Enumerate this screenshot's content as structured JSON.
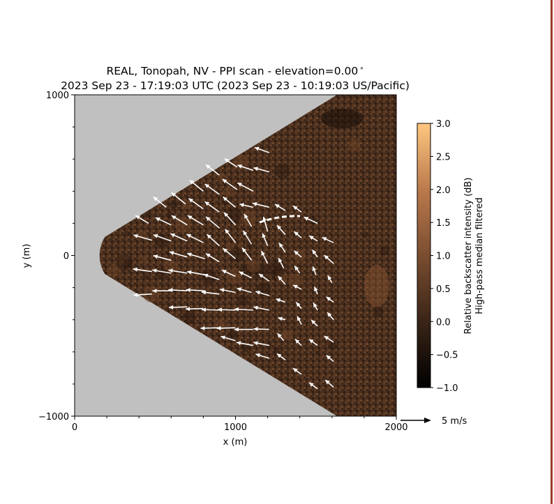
{
  "chart_data": {
    "type": "heatmap",
    "title_line1": "REAL, Tonopah, NV - PPI scan - elevation=0.00$^\\circ$",
    "title_line1_text": "REAL, Tonopah, NV - PPI scan - elevation=0.00",
    "title_line1_sup": "∘",
    "title_line2": "2023 Sep 23 - 17:19:03 UTC (2023 Sep 23 - 10:19:03 US/Pacific)",
    "xlabel": "x (m)",
    "ylabel": "y (m)",
    "xlim": [
      0,
      2000
    ],
    "ylim": [
      -1000,
      1000
    ],
    "x_ticks": [
      0,
      1000,
      2000
    ],
    "y_ticks": [
      -1000,
      0,
      1000
    ],
    "x_tick_labels": [
      "0",
      "1000",
      "2000"
    ],
    "y_tick_labels": [
      "−1000",
      "0",
      "1000"
    ],
    "scan_sector": {
      "r_min": 220,
      "r_max": 2000,
      "az_half_width_deg": 31.5
    },
    "background_color": "#c0c0c0",
    "colorbar": {
      "label_line1": "Relative backscatter intensity (dB)",
      "label_line2": "High-pass median filtered",
      "range": [
        -1.0,
        3.0
      ],
      "ticks": [
        3.0,
        2.5,
        2.0,
        1.5,
        1.0,
        0.5,
        0.0,
        -0.5,
        -1.0
      ],
      "tick_labels": [
        "3.0",
        "2.5",
        "2.0",
        "1.5",
        "1.0",
        "0.5",
        "0.0",
        "−0.5",
        "−1.0"
      ],
      "colormap": "copper",
      "color_low": "#000000",
      "color_high": "#ffc77f"
    },
    "wind_scale": {
      "label": "5 m/s",
      "speed_ms": 5
    },
    "wind_vectors": [
      {
        "x": 460,
        "y": 200,
        "u": -2.5,
        "v": 1.5
      },
      {
        "x": 480,
        "y": 95,
        "u": -3.5,
        "v": 1.0
      },
      {
        "x": 480,
        "y": -100,
        "u": -3.6,
        "v": 0.5
      },
      {
        "x": 480,
        "y": -240,
        "u": -3.5,
        "v": -0.2
      },
      {
        "x": 570,
        "y": 300,
        "u": -2.5,
        "v": 2.0
      },
      {
        "x": 600,
        "y": 190,
        "u": -3.0,
        "v": 1.4
      },
      {
        "x": 600,
        "y": 90,
        "u": -3.4,
        "v": 1.2
      },
      {
        "x": 600,
        "y": -30,
        "u": -3.4,
        "v": 0.9
      },
      {
        "x": 600,
        "y": -110,
        "u": -3.6,
        "v": 0.6
      },
      {
        "x": 600,
        "y": -220,
        "u": -3.6,
        "v": 0.0
      },
      {
        "x": 690,
        "y": 320,
        "u": -2.7,
        "v": 2.2
      },
      {
        "x": 700,
        "y": 190,
        "u": -3.0,
        "v": 1.8
      },
      {
        "x": 700,
        "y": 90,
        "u": -3.2,
        "v": 1.4
      },
      {
        "x": 700,
        "y": -10,
        "u": -3.4,
        "v": 1.0
      },
      {
        "x": 700,
        "y": -110,
        "u": -3.6,
        "v": 0.6
      },
      {
        "x": 700,
        "y": -220,
        "u": -3.6,
        "v": 0.2
      },
      {
        "x": 700,
        "y": -320,
        "u": -3.5,
        "v": -0.1
      },
      {
        "x": 800,
        "y": 400,
        "u": -2.6,
        "v": 2.1
      },
      {
        "x": 800,
        "y": 290,
        "u": -2.8,
        "v": 2.0
      },
      {
        "x": 800,
        "y": 190,
        "u": -3.0,
        "v": 1.8
      },
      {
        "x": 800,
        "y": 80,
        "u": -3.2,
        "v": 1.6
      },
      {
        "x": 810,
        "y": -20,
        "u": -3.4,
        "v": 1.0
      },
      {
        "x": 810,
        "y": -120,
        "u": -3.4,
        "v": 0.6
      },
      {
        "x": 810,
        "y": -220,
        "u": -3.6,
        "v": 0.2
      },
      {
        "x": 800,
        "y": -330,
        "u": -3.4,
        "v": -0.1
      },
      {
        "x": 900,
        "y": 500,
        "u": -2.6,
        "v": 2.0
      },
      {
        "x": 900,
        "y": 380,
        "u": -2.8,
        "v": 2.0
      },
      {
        "x": 900,
        "y": 270,
        "u": -2.8,
        "v": 2.0
      },
      {
        "x": 900,
        "y": 170,
        "u": -2.6,
        "v": 2.2
      },
      {
        "x": 900,
        "y": 60,
        "u": -2.4,
        "v": 2.2
      },
      {
        "x": 900,
        "y": -40,
        "u": -2.6,
        "v": 1.6
      },
      {
        "x": 900,
        "y": -150,
        "u": -3.0,
        "v": 1.0
      },
      {
        "x": 900,
        "y": -240,
        "u": -3.4,
        "v": 0.4
      },
      {
        "x": 900,
        "y": -340,
        "u": -3.4,
        "v": 0.1
      },
      {
        "x": 900,
        "y": -450,
        "u": -3.6,
        "v": -0.1
      },
      {
        "x": 1010,
        "y": 550,
        "u": -2.4,
        "v": 1.6
      },
      {
        "x": 1010,
        "y": 410,
        "u": -2.8,
        "v": 2.0
      },
      {
        "x": 1000,
        "y": 300,
        "u": -2.4,
        "v": 2.0
      },
      {
        "x": 1000,
        "y": 190,
        "u": -2.2,
        "v": 2.4
      },
      {
        "x": 1000,
        "y": 80,
        "u": -2.0,
        "v": 2.6
      },
      {
        "x": 1000,
        "y": -20,
        "u": -2.4,
        "v": 2.0
      },
      {
        "x": 1000,
        "y": -130,
        "u": -2.6,
        "v": 1.2
      },
      {
        "x": 1000,
        "y": -230,
        "u": -3.0,
        "v": 0.6
      },
      {
        "x": 1000,
        "y": -340,
        "u": -3.4,
        "v": 0.1
      },
      {
        "x": 1000,
        "y": -450,
        "u": -3.6,
        "v": -0.1
      },
      {
        "x": 1000,
        "y": -530,
        "u": -2.8,
        "v": 0.8
      },
      {
        "x": 1110,
        "y": 530,
        "u": -3.0,
        "v": 1.0
      },
      {
        "x": 1110,
        "y": 400,
        "u": -3.0,
        "v": 1.6
      },
      {
        "x": 1110,
        "y": 300,
        "u": -2.6,
        "v": 0.6
      },
      {
        "x": 1100,
        "y": 180,
        "u": -1.4,
        "v": 2.4
      },
      {
        "x": 1100,
        "y": 70,
        "u": -1.6,
        "v": 2.6
      },
      {
        "x": 1100,
        "y": -30,
        "u": -1.8,
        "v": 2.4
      },
      {
        "x": 1100,
        "y": -140,
        "u": -2.4,
        "v": 1.2
      },
      {
        "x": 1100,
        "y": -230,
        "u": -2.8,
        "v": 0.8
      },
      {
        "x": 1110,
        "y": -340,
        "u": -3.6,
        "v": 0.2
      },
      {
        "x": 1110,
        "y": -460,
        "u": -3.6,
        "v": 0.0
      },
      {
        "x": 1110,
        "y": -560,
        "u": -3.2,
        "v": 0.6
      },
      {
        "x": 1210,
        "y": 640,
        "u": -2.8,
        "v": 1.0
      },
      {
        "x": 1210,
        "y": 520,
        "u": -3.0,
        "v": 0.8
      },
      {
        "x": 1210,
        "y": 300,
        "u": -3.2,
        "v": 0.8
      },
      {
        "x": 1200,
        "y": 150,
        "u": -0.8,
        "v": 2.8
      },
      {
        "x": 1200,
        "y": 60,
        "u": -1.0,
        "v": 2.4
      },
      {
        "x": 1200,
        "y": -50,
        "u": -1.2,
        "v": 2.4
      },
      {
        "x": 1210,
        "y": -160,
        "u": -2.0,
        "v": 1.4
      },
      {
        "x": 1210,
        "y": -250,
        "u": -2.6,
        "v": 0.8
      },
      {
        "x": 1210,
        "y": -340,
        "u": -3.0,
        "v": 0.6
      },
      {
        "x": 1210,
        "y": -460,
        "u": -3.0,
        "v": 0.1
      },
      {
        "x": 1210,
        "y": -560,
        "u": -3.0,
        "v": 0.6
      },
      {
        "x": 1210,
        "y": -640,
        "u": -2.6,
        "v": 0.8
      },
      {
        "x": 1310,
        "y": 280,
        "u": -2.0,
        "v": 1.2
      },
      {
        "x": 1310,
        "y": 130,
        "u": -1.6,
        "v": 1.8
      },
      {
        "x": 1310,
        "y": 20,
        "u": -1.2,
        "v": 1.8
      },
      {
        "x": 1300,
        "y": -80,
        "u": -1.0,
        "v": 2.0
      },
      {
        "x": 1310,
        "y": -180,
        "u": -1.4,
        "v": 1.6
      },
      {
        "x": 1310,
        "y": -290,
        "u": -1.8,
        "v": 0.6
      },
      {
        "x": 1310,
        "y": -400,
        "u": -1.4,
        "v": 0.4
      },
      {
        "x": 1300,
        "y": -530,
        "u": -1.2,
        "v": 1.4
      },
      {
        "x": 1310,
        "y": -650,
        "u": -1.6,
        "v": 1.2
      },
      {
        "x": 1410,
        "y": 270,
        "u": -1.6,
        "v": 1.2
      },
      {
        "x": 1410,
        "y": 110,
        "u": -1.4,
        "v": 1.2
      },
      {
        "x": 1410,
        "y": -10,
        "u": -1.4,
        "v": 1.2
      },
      {
        "x": 1400,
        "y": -110,
        "u": -1.0,
        "v": 1.4
      },
      {
        "x": 1410,
        "y": -210,
        "u": -1.6,
        "v": 0.8
      },
      {
        "x": 1410,
        "y": -330,
        "u": -1.0,
        "v": 1.2
      },
      {
        "x": 1410,
        "y": -430,
        "u": -0.8,
        "v": 1.6
      },
      {
        "x": 1410,
        "y": -560,
        "u": -1.2,
        "v": 1.2
      },
      {
        "x": 1410,
        "y": -740,
        "u": -1.6,
        "v": 1.2
      },
      {
        "x": 1510,
        "y": 200,
        "u": -2.6,
        "v": 1.2
      },
      {
        "x": 1510,
        "y": 90,
        "u": -1.6,
        "v": 1.0
      },
      {
        "x": 1510,
        "y": -10,
        "u": -1.0,
        "v": 1.4
      },
      {
        "x": 1500,
        "y": -120,
        "u": -0.6,
        "v": 1.6
      },
      {
        "x": 1510,
        "y": -240,
        "u": -0.6,
        "v": 1.4
      },
      {
        "x": 1510,
        "y": -340,
        "u": -0.8,
        "v": 1.4
      },
      {
        "x": 1510,
        "y": -440,
        "u": -1.2,
        "v": 1.2
      },
      {
        "x": 1510,
        "y": -560,
        "u": -1.6,
        "v": 1.2
      },
      {
        "x": 1510,
        "y": -830,
        "u": -1.6,
        "v": 1.2
      },
      {
        "x": 1610,
        "y": 80,
        "u": -2.2,
        "v": 1.0
      },
      {
        "x": 1610,
        "y": -50,
        "u": -1.8,
        "v": 1.6
      },
      {
        "x": 1600,
        "y": -170,
        "u": -0.8,
        "v": 1.4
      },
      {
        "x": 1610,
        "y": -290,
        "u": -1.4,
        "v": 1.0
      },
      {
        "x": 1610,
        "y": -400,
        "u": -1.2,
        "v": 1.4
      },
      {
        "x": 1610,
        "y": -540,
        "u": -1.8,
        "v": 1.2
      },
      {
        "x": 1610,
        "y": -660,
        "u": -1.4,
        "v": 1.2
      },
      {
        "x": 1610,
        "y": -820,
        "u": -1.6,
        "v": 1.4
      }
    ]
  }
}
